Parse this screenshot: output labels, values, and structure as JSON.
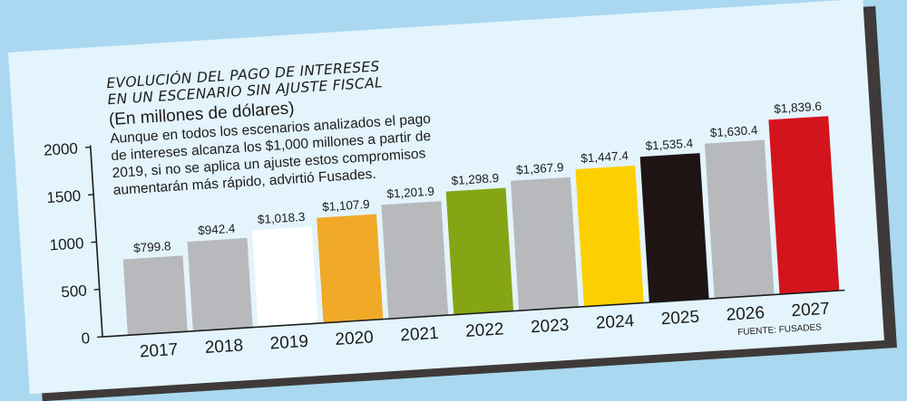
{
  "chart_data": {
    "type": "bar",
    "title": "EVOLUCIÓN DEL PAGO DE INTERESES EN UN ESCENARIO SIN AJUSTE FISCAL",
    "title_lines": [
      "EVOLUCIÓN DEL PAGO DE INTERESES",
      "EN UN ESCENARIO SIN AJUSTE FISCAL"
    ],
    "unit_label": "(En millones de dólares)",
    "description_lines": [
      "Aunque en todos los escenarios analizados el pago",
      "de intereses alcanza los $1,000 millones a partir de",
      "2019, si no se aplica un ajuste estos compromisos",
      "aumentarán más rápido, advirtió Fusades."
    ],
    "source": "FUENTE: FUSADES",
    "categories": [
      "2017",
      "2018",
      "2019",
      "2020",
      "2021",
      "2022",
      "2023",
      "2024",
      "2025",
      "2026",
      "2027"
    ],
    "values": [
      799.8,
      942.4,
      1018.3,
      1107.9,
      1201.9,
      1298.9,
      1367.9,
      1447.4,
      1535.4,
      1630.4,
      1839.6
    ],
    "value_labels": [
      "$799.8",
      "$942.4",
      "$1,018.3",
      "$1,107.9",
      "$1,201.9",
      "$1,298.9",
      "$1,367.9",
      "$1,447.4",
      "$1,535.4",
      "$1,630.4",
      "$1,839.6"
    ],
    "bar_colors": [
      "#b8b9bd",
      "#b8b9bd",
      "#ffffff",
      "#f0aa28",
      "#b8b9bd",
      "#86a514",
      "#b8b9bd",
      "#fcd000",
      "#1e1414",
      "#b8b9bd",
      "#d4141c"
    ],
    "yticks": [
      0,
      500,
      1000,
      1500,
      2000
    ],
    "ylim": [
      0,
      2000
    ],
    "grid": false,
    "legend": "none"
  }
}
